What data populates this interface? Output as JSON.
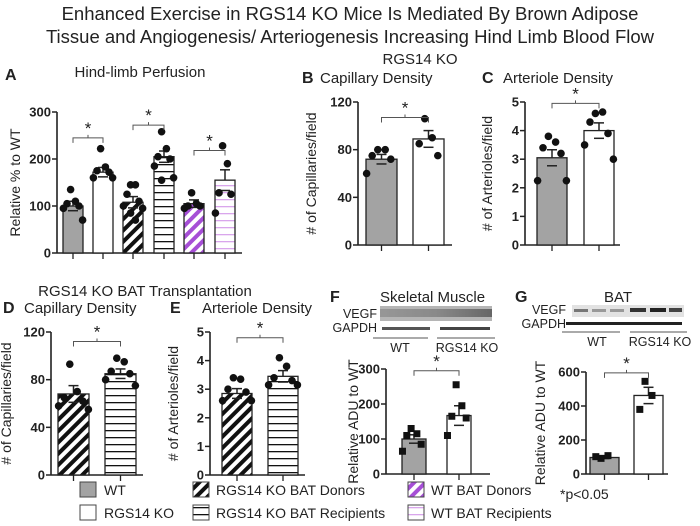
{
  "figure": {
    "title_line1": "Enhanced Exercise in RGS14 KO Mice Is Mediated By Brown Adipose",
    "title_line2": "Tissue and  Angiogenesis/ Arteriogenesis Increasing Hind Limb Blood Flow",
    "group_label_top": "RGS14 KO",
    "group_label_bottom": "RGS14 KO BAT Transplantation",
    "footnote": "*p<0.05"
  },
  "colors": {
    "gray_fill": "#a3a3a3",
    "purple": "#a64fd6",
    "light_purple": "#d9a6ec",
    "ink": "#222222"
  },
  "blots": {
    "F": {
      "rows": [
        "VEGF",
        "GAPDH"
      ],
      "groups": [
        "WT",
        "RGS14 KO"
      ]
    },
    "G": {
      "rows": [
        "VEGF",
        "GAPDH"
      ],
      "groups": [
        "WT",
        "RGS14 KO"
      ]
    }
  },
  "legend": [
    {
      "label": "WT",
      "fill": "gray"
    },
    {
      "label": "RGS14 KO",
      "fill": "white"
    },
    {
      "label": "RGS14 KO BAT Donors",
      "fill": "diag-black"
    },
    {
      "label": "RGS14 KO BAT Recipients",
      "fill": "hstripe-black"
    },
    {
      "label": "WT BAT Donors",
      "fill": "diag-purple"
    },
    {
      "label": "WT BAT Recipients",
      "fill": "hstripe-purple"
    }
  ],
  "chart_data": [
    {
      "id": "A",
      "letter": "A",
      "title": "Hind-limb Perfusion",
      "type": "bar",
      "ylabel": "Relative % to WT",
      "ylim": [
        0,
        300
      ],
      "yticks": [
        0,
        100,
        200,
        300
      ],
      "point_marker": "circle",
      "bars": [
        {
          "group": "WT",
          "fill": "gray",
          "value": 100,
          "sem": 10,
          "points": [
            135,
            110,
            105,
            100,
            95,
            70
          ]
        },
        {
          "group": "RGS14 KO",
          "fill": "white",
          "value": 172,
          "sem": 10,
          "points": [
            222,
            183,
            175,
            172,
            160,
            160
          ]
        },
        {
          "group": "RGS14 KO BAT Donors",
          "fill": "diag-black",
          "value": 108,
          "sem": 12,
          "points": [
            145,
            145,
            125,
            110,
            100,
            95,
            85,
            70
          ]
        },
        {
          "group": "RGS14 KO BAT Recipients",
          "fill": "hstripe-black",
          "value": 205,
          "sem": 12,
          "points": [
            258,
            222,
            205,
            200,
            185,
            160,
            155
          ]
        },
        {
          "group": "WT BAT Donors",
          "fill": "diag-purple",
          "value": 105,
          "sem": 8,
          "points": [
            128,
            105,
            100,
            100,
            95
          ]
        },
        {
          "group": "WT BAT Recipients",
          "fill": "hstripe-purple",
          "value": 155,
          "sem": 22,
          "points": [
            228,
            190,
            128,
            125,
            85
          ]
        }
      ],
      "significance": [
        {
          "pair": [
            0,
            1
          ],
          "level": 245,
          "label": "*"
        },
        {
          "pair": [
            2,
            3
          ],
          "level": 272,
          "label": "*"
        },
        {
          "pair": [
            4,
            5
          ],
          "level": 218,
          "label": "*"
        }
      ]
    },
    {
      "id": "B",
      "letter": "B",
      "title": "Capillary Density",
      "type": "bar",
      "ylabel": "# of Capillaries/field",
      "ylim": [
        0,
        120
      ],
      "yticks": [
        0,
        40,
        80,
        120
      ],
      "point_marker": "circle",
      "bars": [
        {
          "group": "WT",
          "fill": "gray",
          "value": 72,
          "sem": 4,
          "points": [
            80,
            80,
            75,
            72,
            60
          ]
        },
        {
          "group": "RGS14 KO",
          "fill": "white",
          "value": 89,
          "sem": 7,
          "points": [
            106,
            90,
            85,
            75
          ]
        }
      ],
      "significance": [
        {
          "pair": [
            0,
            1
          ],
          "level": 107,
          "label": "*"
        }
      ]
    },
    {
      "id": "C",
      "letter": "C",
      "title": "Arteriole Density",
      "type": "bar",
      "ylabel": "# of Arterioles/field",
      "ylim": [
        0,
        5
      ],
      "yticks": [
        0,
        1,
        2,
        3,
        4,
        5
      ],
      "point_marker": "circle",
      "bars": [
        {
          "group": "WT",
          "fill": "gray",
          "value": 3.05,
          "sem": 0.28,
          "points": [
            3.8,
            3.6,
            3.4,
            3.2,
            2.25,
            2.25
          ]
        },
        {
          "group": "RGS14 KO",
          "fill": "white",
          "value": 4.0,
          "sem": 0.27,
          "points": [
            4.6,
            4.65,
            4.3,
            3.9,
            3.5,
            3.0
          ]
        }
      ],
      "significance": [
        {
          "pair": [
            0,
            1
          ],
          "level": 4.95,
          "label": "*"
        }
      ]
    },
    {
      "id": "D",
      "letter": "D",
      "title": "Capillary Density",
      "type": "bar",
      "ylabel": "# of Capillaries/field",
      "ylim": [
        0,
        120
      ],
      "yticks": [
        0,
        40,
        80,
        120
      ],
      "point_marker": "circle",
      "bars": [
        {
          "group": "RGS14 KO BAT Donors",
          "fill": "diag-black",
          "value": 68,
          "sem": 7,
          "points": [
            93,
            70,
            65,
            62,
            58,
            55
          ]
        },
        {
          "group": "RGS14 KO BAT Recipients",
          "fill": "hstripe-black",
          "value": 85,
          "sem": 4,
          "points": [
            98,
            95,
            87,
            85,
            80,
            75
          ]
        }
      ],
      "significance": [
        {
          "pair": [
            0,
            1
          ],
          "level": 112,
          "label": "*"
        }
      ]
    },
    {
      "id": "E",
      "letter": "E",
      "title": "Arteriole Density",
      "type": "bar",
      "ylabel": "# of Arterioles/field",
      "ylim": [
        0,
        5
      ],
      "yticks": [
        0,
        1,
        2,
        3,
        4,
        5
      ],
      "point_marker": "circle",
      "bars": [
        {
          "group": "RGS14 KO BAT Donors",
          "fill": "diag-black",
          "value": 2.85,
          "sem": 0.17,
          "points": [
            3.4,
            3.35,
            3.0,
            2.9,
            2.6,
            2.6
          ]
        },
        {
          "group": "RGS14 KO BAT Recipients",
          "fill": "hstripe-black",
          "value": 3.45,
          "sem": 0.2,
          "points": [
            4.1,
            3.8,
            3.4,
            3.3,
            3.15,
            3.15
          ]
        }
      ],
      "significance": [
        {
          "pair": [
            0,
            1
          ],
          "level": 4.8,
          "label": "*"
        }
      ]
    },
    {
      "id": "F",
      "letter": "F",
      "title": "Skeletal Muscle",
      "type": "bar",
      "ylabel": "Relative ADU to WT",
      "ylim": [
        0,
        300
      ],
      "yticks": [
        0,
        100,
        200,
        300
      ],
      "point_marker": "square",
      "bars": [
        {
          "group": "WT",
          "fill": "gray",
          "value": 100,
          "sem": 12,
          "points": [
            130,
            115,
            110,
            85,
            65
          ]
        },
        {
          "group": "RGS14 KO",
          "fill": "white",
          "value": 167,
          "sem": 28,
          "points": [
            255,
            195,
            165,
            160,
            110
          ]
        }
      ],
      "significance": [
        {
          "pair": [
            0,
            1
          ],
          "level": 295,
          "label": "*"
        }
      ]
    },
    {
      "id": "G",
      "letter": "G",
      "title": "BAT",
      "type": "bar",
      "ylabel": "Relative ADU to WT",
      "ylim": [
        0,
        600
      ],
      "yticks": [
        0,
        200,
        400,
        600
      ],
      "point_marker": "square",
      "bars": [
        {
          "group": "WT",
          "fill": "gray",
          "value": 97,
          "sem": 6,
          "points": [
            92,
            108,
            102
          ]
        },
        {
          "group": "RGS14 KO",
          "fill": "white",
          "value": 462,
          "sem": 48,
          "points": [
            545,
            462,
            380
          ]
        }
      ],
      "significance": [
        {
          "pair": [
            0,
            1
          ],
          "level": 595,
          "label": "*"
        }
      ]
    }
  ]
}
